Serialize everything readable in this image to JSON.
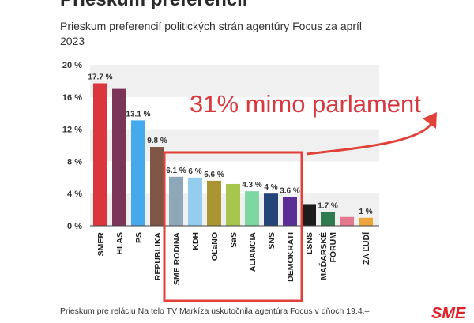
{
  "title": "Prieskum preferencií",
  "subtitle": "Prieskum preferencií politických strán agentúry Focus za apríl 2023",
  "annotation": "31% mimo parlament",
  "footer": "Prieskum pre reláciu Na telo TV Markíza uskutočnila agentúra Focus v dňoch 19.4.–",
  "logo": "SME",
  "colors": {
    "annotation": "#d9383e"
  },
  "chart_data": {
    "type": "bar",
    "title": "Prieskum preferencií",
    "ylim": [
      0,
      20
    ],
    "yticks": [
      "0 %",
      "4 %",
      "8 %",
      "12 %",
      "16 %",
      "20 %"
    ],
    "ytick_values": [
      0,
      4,
      8,
      12,
      16,
      20
    ],
    "grid": "alternating bands",
    "categories": [
      "SMER",
      "HLAS",
      "PS",
      "REPUBLIKA",
      "SME RODINA",
      "KDH",
      "OĽaNO",
      "SaS",
      "ALIANCIA",
      "SNS",
      "DEMOKRATI",
      "ĽSNS",
      "MAĎARSKÉ FÓRUM",
      "",
      "ZA ĽUDÍ"
    ],
    "values": [
      17.7,
      17.0,
      13.1,
      9.8,
      6.1,
      6.0,
      5.6,
      5.2,
      4.3,
      4.0,
      3.6,
      2.7,
      1.7,
      1.1,
      1.0
    ],
    "data_labels": [
      "17.7 %",
      "",
      "13.1 %",
      "9.8 %",
      "6.1 %",
      "6 %",
      "5.6 %",
      "",
      "4.3 %",
      "4 %",
      "3.6 %",
      "",
      "1.7 %",
      "",
      "1 %"
    ],
    "colors": [
      "#d9363e",
      "#7b3556",
      "#45a9ec",
      "#7e5646",
      "#8fa8b9",
      "#94cdee",
      "#a99633",
      "#a6c64e",
      "#7ed6a2",
      "#24457a",
      "#5c2e95",
      "#1c1c1c",
      "#2f7a4f",
      "#e4788f",
      "#eca53a"
    ],
    "highlight_box_categories": [
      "SME RODINA",
      "KDH",
      "OĽaNO",
      "SaS",
      "ALIANCIA",
      "SNS",
      "DEMOKRATI"
    ]
  }
}
